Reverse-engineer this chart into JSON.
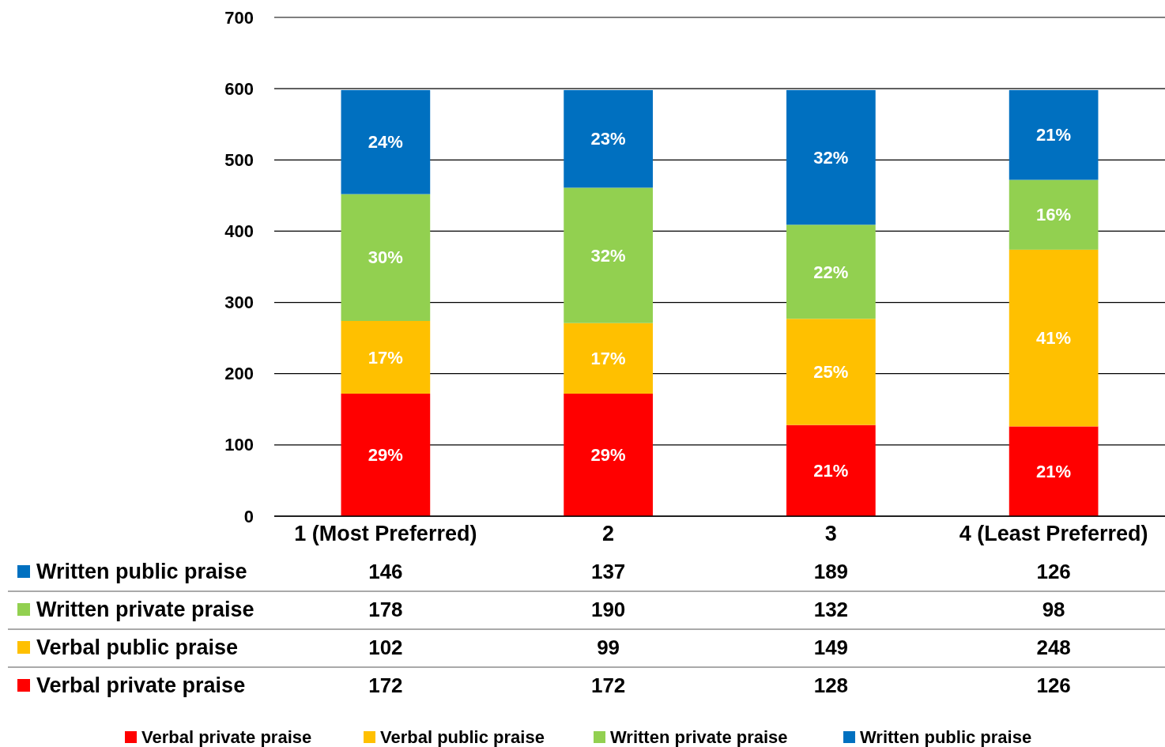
{
  "chart_data": {
    "type": "bar",
    "stacked": true,
    "categories": [
      "1 (Most Preferred)",
      "2",
      "3",
      "4 (Least Preferred)"
    ],
    "series": [
      {
        "name": "Verbal private praise",
        "color": "#ff0000",
        "values": [
          172,
          172,
          128,
          126
        ]
      },
      {
        "name": "Verbal public praise",
        "color": "#ffc000",
        "values": [
          102,
          99,
          149,
          248
        ]
      },
      {
        "name": "Written private praise",
        "color": "#92d050",
        "values": [
          178,
          190,
          132,
          98
        ]
      },
      {
        "name": "Written public praise",
        "color": "#0070c0",
        "values": [
          146,
          137,
          189,
          126
        ]
      }
    ],
    "annotations": [
      "29%",
      "29%",
      "21%",
      "21%",
      "17%",
      "17%",
      "25%",
      "41%",
      "30%",
      "32%",
      "22%",
      "16%",
      "24%",
      "23%",
      "32%",
      "21%"
    ],
    "ylim": [
      0,
      700
    ],
    "yticks": [
      0,
      100,
      200,
      300,
      400,
      500,
      600,
      700
    ],
    "grid": "y",
    "legend": "bottom",
    "data_labels": true
  }
}
